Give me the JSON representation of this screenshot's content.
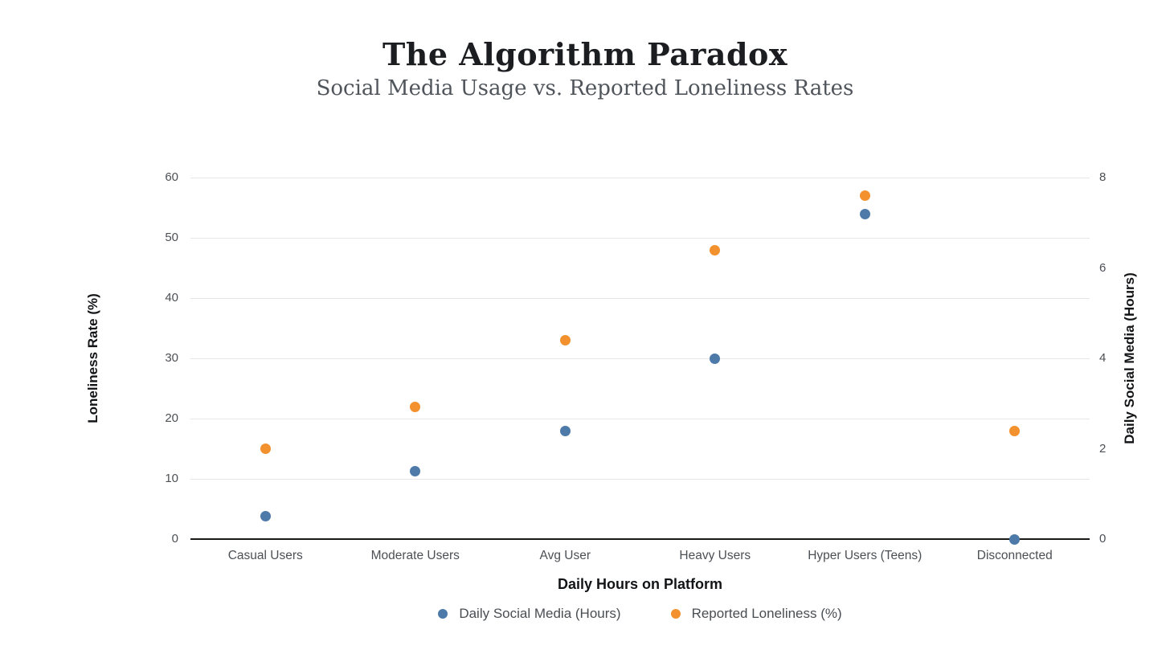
{
  "header": {
    "title": "The Algorithm Paradox",
    "subtitle": "Social Media Usage vs. Reported Loneliness Rates"
  },
  "chart_data": {
    "type": "scatter",
    "title": "The Algorithm Paradox",
    "subtitle": "Social Media Usage vs. Reported Loneliness Rates",
    "categories": [
      "Casual Users",
      "Moderate Users",
      "Avg User",
      "Heavy Users",
      "Hyper Users (Teens)",
      "Disconnected"
    ],
    "series": [
      {
        "name": "Daily Social Media (Hours)",
        "axis": "right",
        "color": "#4d7aa8",
        "values": [
          0.5,
          1.5,
          2.4,
          4,
          7.2,
          0
        ]
      },
      {
        "name": "Reported Loneliness (%)",
        "axis": "left",
        "color": "#f2912d",
        "values": [
          15,
          22,
          33,
          48,
          57,
          18
        ]
      }
    ],
    "axes": {
      "left": {
        "label": "Loneliness Rate (%)",
        "min": 0,
        "max": 60,
        "ticks": [
          0,
          10,
          20,
          30,
          40,
          50,
          60
        ]
      },
      "right": {
        "label": "Daily Social Media (Hours)",
        "min": 0,
        "max": 8,
        "ticks": [
          0,
          2,
          4,
          6,
          8
        ]
      },
      "x": {
        "label": "Daily Hours on Platform"
      }
    },
    "grid": true,
    "legend_position": "bottom",
    "colors": {
      "grid": "#e6e6e6",
      "axis_line": "#1b1a17",
      "tick_text": "#4c5055",
      "legend_text": "#494e53",
      "title_text": "#1b1d20",
      "subtitle_text": "#50555b"
    }
  }
}
